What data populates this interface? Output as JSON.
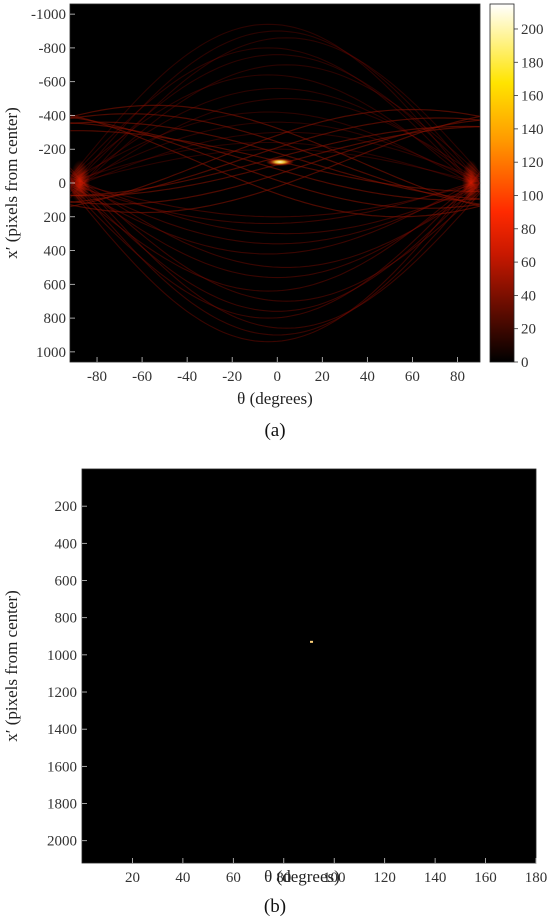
{
  "chart_data": [
    {
      "type": "heatmap",
      "panel_label": "(a)",
      "xlabel": "θ (degrees)",
      "ylabel": "x′ (pixels from center)",
      "xlim": [
        -92,
        90
      ],
      "ylim": [
        -1060,
        1060
      ],
      "y_reversed": true,
      "x_ticks": [
        "-80",
        "-60",
        "-40",
        "-20",
        "0",
        "20",
        "40",
        "60",
        "80"
      ],
      "x_tick_values": [
        -80,
        -60,
        -40,
        -20,
        0,
        20,
        40,
        60,
        80
      ],
      "y_ticks": [
        "-1000",
        "-800",
        "-600",
        "-400",
        "-200",
        "0",
        "200",
        "400",
        "600",
        "800",
        "1000"
      ],
      "y_tick_values": [
        -1000,
        -800,
        -600,
        -400,
        -200,
        0,
        200,
        400,
        600,
        800,
        1000
      ],
      "colorbar": {
        "colormap": "hot",
        "range": [
          0,
          215
        ],
        "ticks": [
          "0",
          "20",
          "40",
          "60",
          "80",
          "100",
          "120",
          "140",
          "160",
          "180",
          "200"
        ],
        "tick_values": [
          0,
          20,
          40,
          60,
          80,
          100,
          120,
          140,
          160,
          180,
          200
        ]
      },
      "peak": {
        "theta": 0,
        "x": -130,
        "value": 215
      },
      "grid": false,
      "legend": "none",
      "colors": {
        "background": "#000000",
        "curves": "#7a0a00",
        "peak": "#ffffd0"
      }
    },
    {
      "type": "heatmap",
      "panel_label": "(b)",
      "xlabel": "θ (degrees)",
      "ylabel": "x′ (pixels from center)",
      "xlim": [
        0,
        180
      ],
      "ylim": [
        0,
        2120
      ],
      "y_reversed": true,
      "x_ticks": [
        "20",
        "40",
        "60",
        "80",
        "100",
        "120",
        "140",
        "160",
        "180"
      ],
      "x_tick_values": [
        20,
        40,
        60,
        80,
        100,
        120,
        140,
        160,
        180
      ],
      "y_ticks": [
        "200",
        "400",
        "600",
        "800",
        "1000",
        "1200",
        "1400",
        "1600",
        "1800",
        "2000"
      ],
      "y_tick_values": [
        200,
        400,
        600,
        800,
        1000,
        1200,
        1400,
        1600,
        1800,
        2000
      ],
      "peak": {
        "theta": 91,
        "x": 930
      },
      "grid": false,
      "legend": "none",
      "colors": {
        "background": "#000000",
        "peak": "#ffd27a"
      }
    }
  ]
}
